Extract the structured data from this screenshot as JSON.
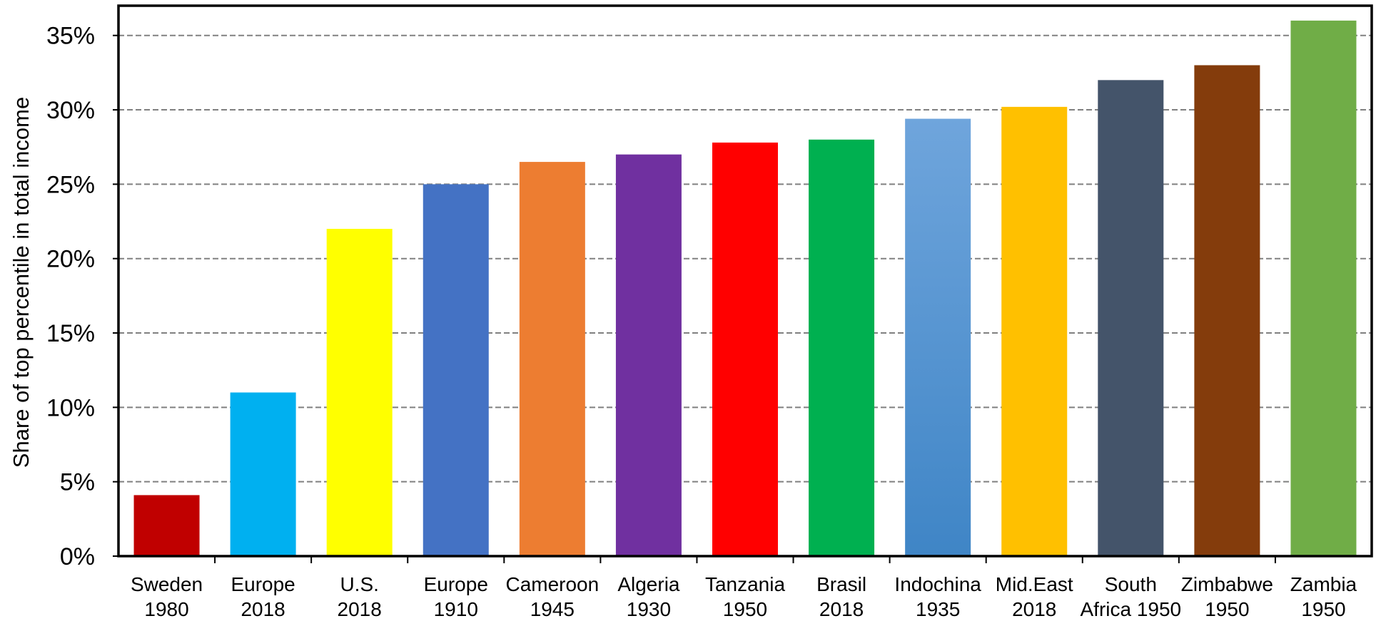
{
  "chart_data": {
    "type": "bar",
    "ylabel": "Share of top percentile in total income",
    "xlabel": "",
    "ylim": [
      0,
      0.37
    ],
    "yticks": [
      0,
      0.05,
      0.1,
      0.15,
      0.2,
      0.25,
      0.3,
      0.35
    ],
    "ytick_labels": [
      "0%",
      "5%",
      "10%",
      "15%",
      "20%",
      "25%",
      "30%",
      "35%"
    ],
    "grid": "horizontal dashed",
    "legend": "none",
    "categories": [
      [
        "Sweden",
        "1980"
      ],
      [
        "Europe",
        "2018"
      ],
      [
        "U.S.",
        "2018"
      ],
      [
        "Europe",
        "1910"
      ],
      [
        "Cameroon",
        "1945"
      ],
      [
        "Algeria",
        "1930"
      ],
      [
        "Tanzania",
        "1950"
      ],
      [
        "Brasil",
        "2018"
      ],
      [
        "Indochina",
        "1935"
      ],
      [
        "Mid.East",
        "2018"
      ],
      [
        "South",
        "Africa 1950"
      ],
      [
        "Zimbabwe",
        "1950"
      ],
      [
        "Zambia",
        "1950"
      ]
    ],
    "values": [
      0.041,
      0.11,
      0.22,
      0.25,
      0.265,
      0.27,
      0.278,
      0.28,
      0.294,
      0.302,
      0.32,
      0.33,
      0.36
    ],
    "colors": [
      "#C00000",
      "#00B0F0",
      "#FFFF00",
      "#4472C4",
      "#ED7D31",
      "#7030A0",
      "#FF0000",
      "#00B050",
      "#5B9BD5",
      "#FFC000",
      "#44546A",
      "#843C0C",
      "#70AD47"
    ]
  }
}
